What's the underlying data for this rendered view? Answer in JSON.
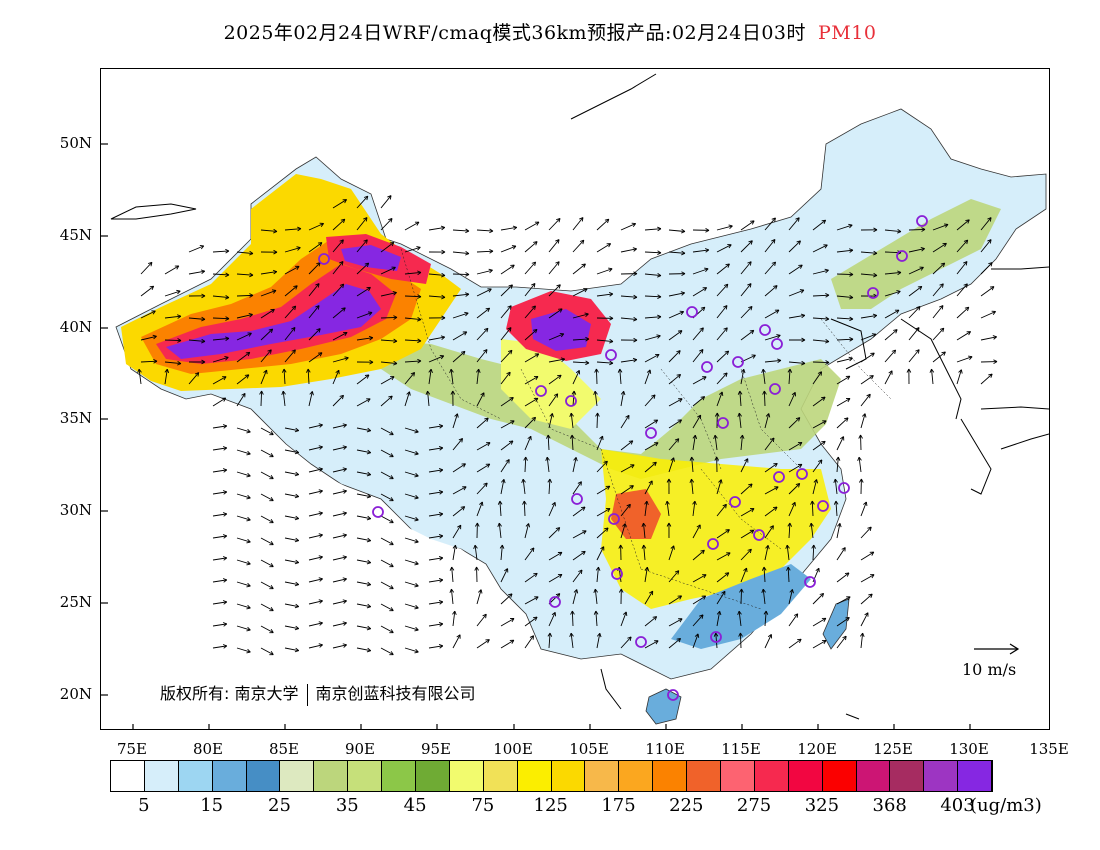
{
  "title": {
    "main": "2025年02月24日WRF/cmaq模式36km预报产品:02月24日03时",
    "product": "PM10"
  },
  "map": {
    "lat_ticks": [
      "50N",
      "45N",
      "40N",
      "35N",
      "30N",
      "25N",
      "20N"
    ],
    "lon_ticks": [
      "75E",
      "80E",
      "85E",
      "90E",
      "95E",
      "100E",
      "105E",
      "110E",
      "115E",
      "120E",
      "125E",
      "130E",
      "135E"
    ],
    "copyright": {
      "prefix": "版权所有:",
      "org1": "南京大学",
      "org2": "南京创蓝科技有限公司"
    },
    "wind_reference": "10 m/s"
  },
  "colorbar": {
    "colors": [
      "#ffffff",
      "#d6eefa",
      "#9dd6f2",
      "#69addc",
      "#468ec5",
      "#dde9c0",
      "#bcd67c",
      "#c6e07a",
      "#8cc748",
      "#6fab34",
      "#f2fb6e",
      "#f1e157",
      "#fbee00",
      "#fbd900",
      "#f7b84a",
      "#fba71f",
      "#fb8200",
      "#f0622a",
      "#fd6371",
      "#f6294f",
      "#f20641",
      "#fb0000",
      "#cc1574",
      "#a62c61",
      "#9d35c2",
      "#8627e2"
    ],
    "labels": [
      "5",
      "15",
      "25",
      "35",
      "45",
      "75",
      "125",
      "175",
      "225",
      "275",
      "325",
      "368",
      "403"
    ],
    "units": "(ug/m3)"
  }
}
